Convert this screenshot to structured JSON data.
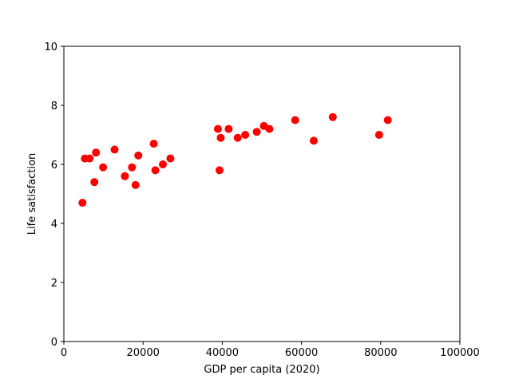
{
  "chart_data": {
    "type": "scatter",
    "title": "",
    "xlabel": "GDP per capita (2020)",
    "ylabel": "Life satisfaction",
    "xlim": [
      0,
      100000
    ],
    "ylim": [
      0,
      10
    ],
    "xticks": [
      0,
      20000,
      40000,
      60000,
      80000,
      100000
    ],
    "xtick_labels": [
      "0",
      "20000",
      "40000",
      "60000",
      "80000",
      "100000"
    ],
    "yticks": [
      0,
      2,
      4,
      6,
      8,
      10
    ],
    "ytick_labels": [
      "0",
      "2",
      "4",
      "6",
      "8",
      "10"
    ],
    "grid": false,
    "marker_color": "#ff0000",
    "series": [
      {
        "points": [
          [
            4700,
            4.7
          ],
          [
            5300,
            6.2
          ],
          [
            6500,
            6.2
          ],
          [
            7700,
            5.4
          ],
          [
            8100,
            6.4
          ],
          [
            9900,
            5.9
          ],
          [
            12800,
            6.5
          ],
          [
            15400,
            5.6
          ],
          [
            17200,
            5.9
          ],
          [
            18100,
            5.3
          ],
          [
            18800,
            6.3
          ],
          [
            22700,
            6.7
          ],
          [
            23100,
            5.8
          ],
          [
            25000,
            6.0
          ],
          [
            26900,
            6.2
          ],
          [
            38900,
            7.2
          ],
          [
            39300,
            5.8
          ],
          [
            39600,
            6.9
          ],
          [
            41600,
            7.2
          ],
          [
            43900,
            6.9
          ],
          [
            45800,
            7.0
          ],
          [
            48700,
            7.1
          ],
          [
            50500,
            7.3
          ],
          [
            51900,
            7.2
          ],
          [
            58400,
            7.5
          ],
          [
            63100,
            6.8
          ],
          [
            67900,
            7.6
          ],
          [
            79600,
            7.0
          ],
          [
            81800,
            7.5
          ]
        ]
      }
    ]
  }
}
